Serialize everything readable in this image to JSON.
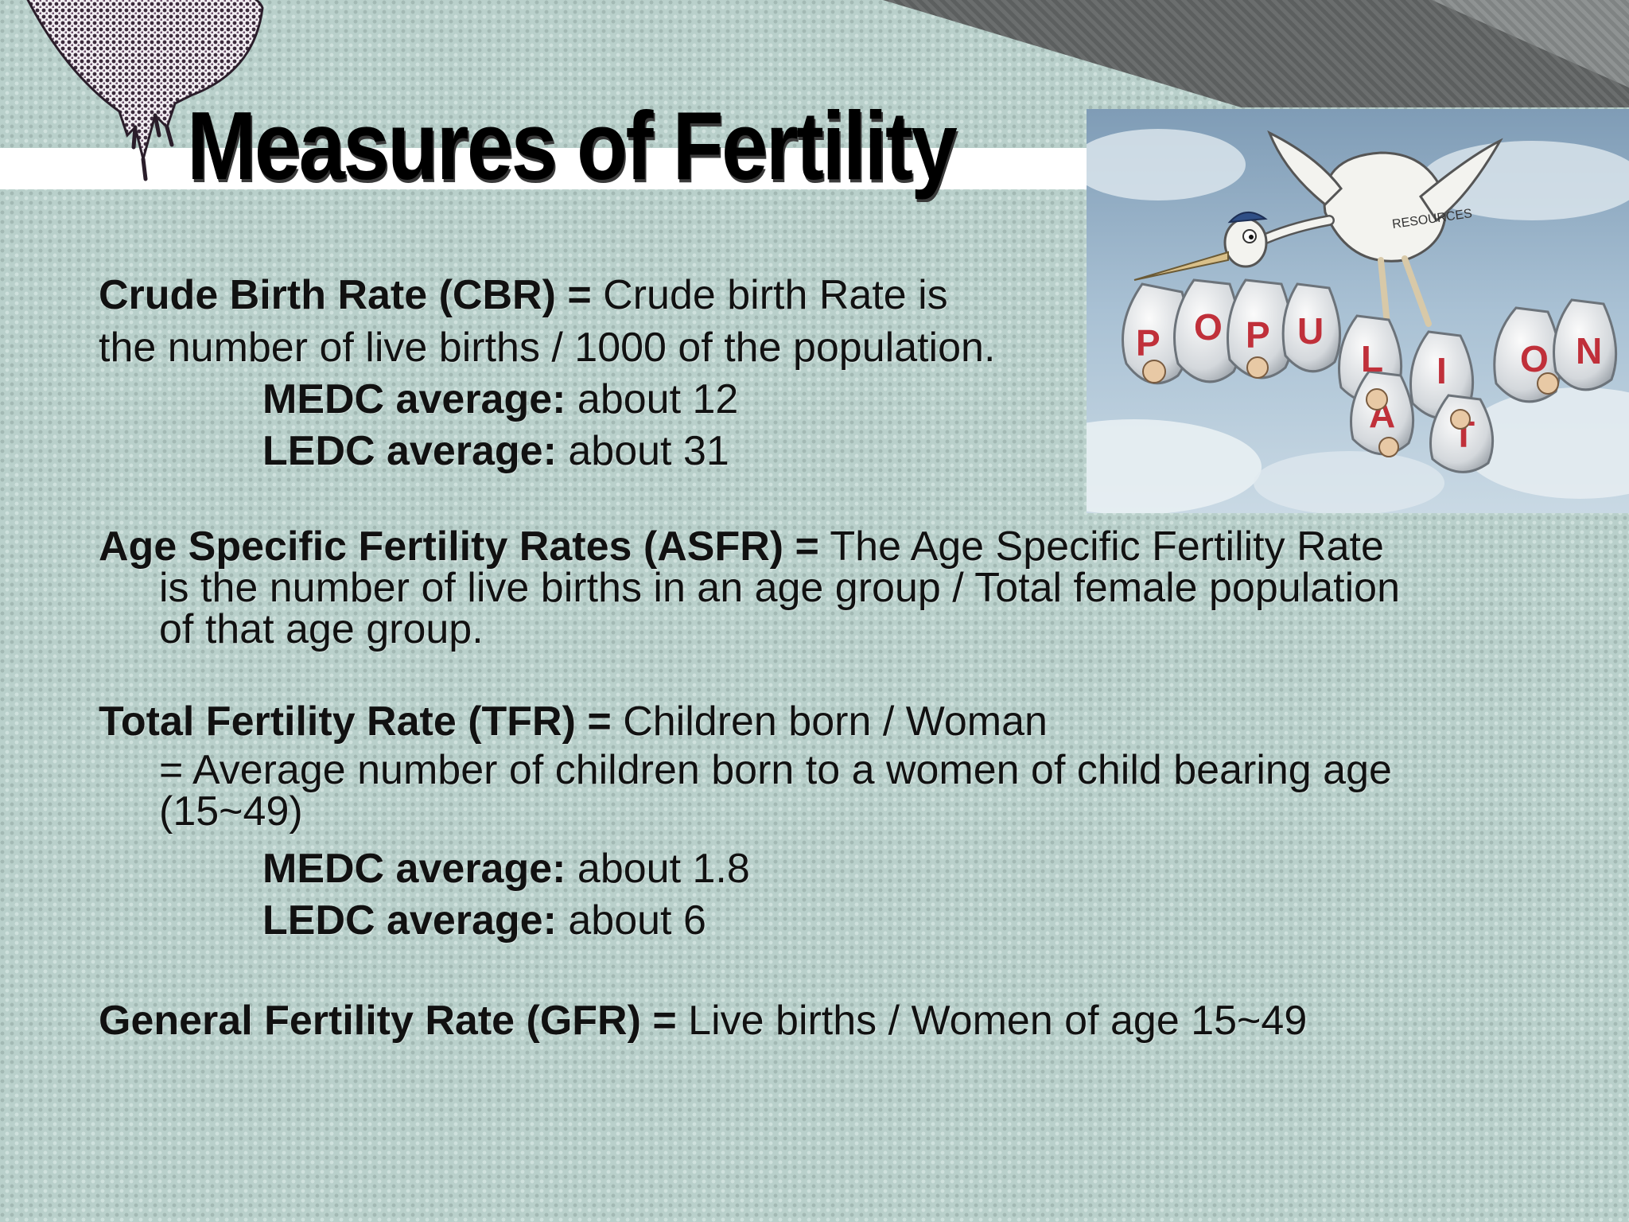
{
  "slide": {
    "title": "Measures of Fertility",
    "image": {
      "caption_text": "RESOURCES",
      "letters": [
        "P",
        "O",
        "P",
        "U",
        "L",
        "A",
        "T",
        "I",
        "O",
        "N"
      ]
    },
    "cbr": {
      "term": "Crude Birth Rate (CBR) =",
      "def_line1": " Crude birth Rate is",
      "def_line2": "the number of live births / 1000 of the population.",
      "medc_label": "MEDC average:",
      "medc_value": " about 12",
      "ledc_label": "LEDC average:",
      "ledc_value": " about 31"
    },
    "asfr": {
      "term": "Age Specific Fertility Rates (ASFR) =",
      "def_line1": " The Age Specific Fertility Rate",
      "def_line2": "is the number of live births in an age group / Total female population",
      "def_line3": "of that age group."
    },
    "tfr": {
      "term": "Total Fertility Rate (TFR) =",
      "def_line1": " Children born / Woman",
      "def_line2": "= Average number of children born to a women of child bearing age",
      "def_line3": "(15~49)",
      "medc_label": "MEDC average:",
      "medc_value": " about 1.8",
      "ledc_label": "LEDC average:",
      "ledc_value": " about 6"
    },
    "gfr": {
      "term": "General Fertility Rate (GFR) =",
      "def_line1": " Live births / Women of age 15~49"
    }
  },
  "colors": {
    "background": "#b9d0cb",
    "title_bar": "#ffffff",
    "deco_band": "#5f6262",
    "text": "#111111",
    "bag_letters": "#c0303a"
  }
}
